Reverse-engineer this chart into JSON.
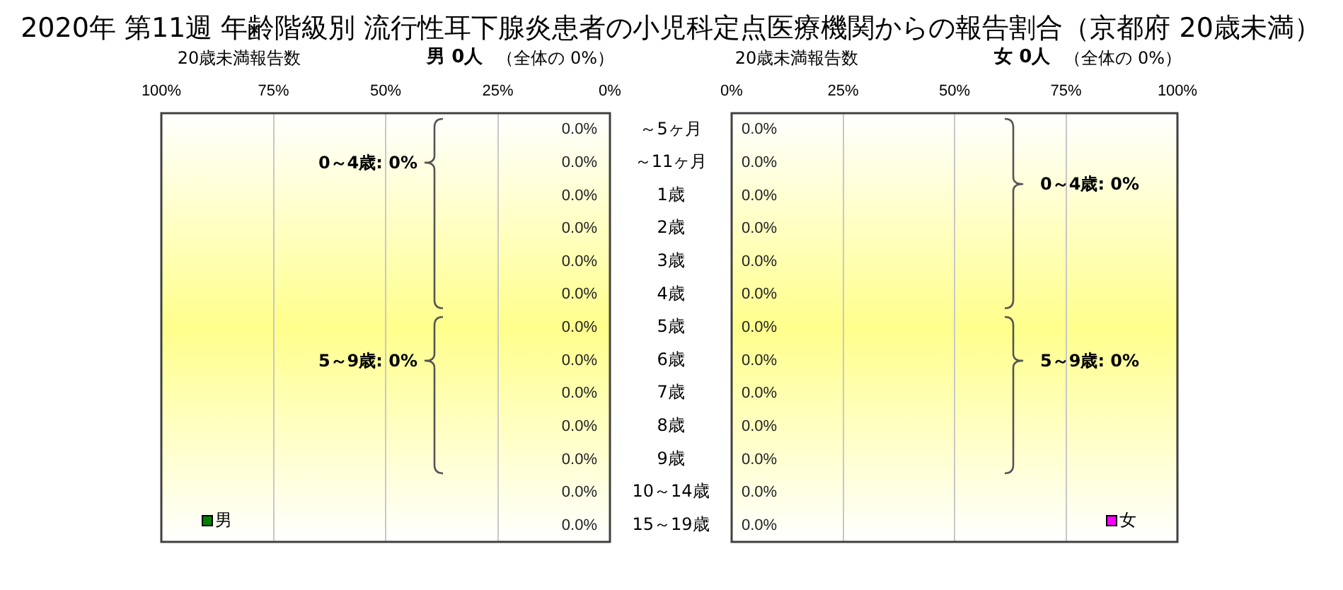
{
  "chart_data": [
    {
      "type": "bar",
      "orientation": "horizontal",
      "title": "2020年 第11週 年齢階級別 流行性耳下腺炎患者の小児科定点医療機関からの報告割合（京都府 20歳未満）",
      "subtitle": "20歳未満報告数",
      "annotations": [
        "男 0人",
        "（全体の 0%）",
        "0～4歳: 0%",
        "5～9歳: 0%"
      ],
      "categories": [
        "～5ヶ月",
        "～11ヶ月",
        "1歳",
        "2歳",
        "3歳",
        "4歳",
        "5歳",
        "6歳",
        "7歳",
        "8歳",
        "9歳",
        "10～14歳",
        "15～19歳"
      ],
      "series": [
        {
          "name": "男",
          "color": "#008000",
          "values": [
            0,
            0,
            0,
            0,
            0,
            0,
            0,
            0,
            0,
            0,
            0,
            0,
            0
          ],
          "value_labels": [
            "0.0%",
            "0.0%",
            "0.0%",
            "0.0%",
            "0.0%",
            "0.0%",
            "0.0%",
            "0.0%",
            "0.0%",
            "0.0%",
            "0.0%",
            "0.0%",
            "0.0%"
          ]
        }
      ],
      "xlim": [
        100,
        0
      ],
      "xticks": [
        {
          "value": 100,
          "label": "100%"
        },
        {
          "value": 75,
          "label": "75%"
        },
        {
          "value": 50,
          "label": "50%"
        },
        {
          "value": 25,
          "label": "25%"
        },
        {
          "value": 0,
          "label": "0%"
        }
      ],
      "grid": "x",
      "legend": "bottom left"
    },
    {
      "type": "bar",
      "orientation": "horizontal",
      "subtitle": "20歳未満報告数",
      "annotations": [
        "女 0人",
        "（全体の 0%）",
        "0～4歳: 0%",
        "5～9歳: 0%"
      ],
      "categories": [
        null,
        null,
        null,
        null,
        null,
        null,
        null,
        null,
        null,
        null,
        null,
        null,
        null
      ],
      "series": [
        {
          "name": "女",
          "color": "#ff00ff",
          "values": [
            0,
            0,
            0,
            0,
            0,
            0,
            0,
            0,
            0,
            0,
            0,
            0,
            0
          ],
          "value_labels": [
            "0.0%",
            "0.0%",
            "0.0%",
            "0.0%",
            "0.0%",
            "0.0%",
            "0.0%",
            "0.0%",
            "0.0%",
            "0.0%",
            "0.0%",
            "0.0%",
            "0.0%"
          ]
        }
      ],
      "xlim": [
        0,
        100
      ],
      "xticks": [
        {
          "value": 0,
          "label": "0%"
        },
        {
          "value": 25,
          "label": "25%"
        },
        {
          "value": 50,
          "label": "50%"
        },
        {
          "value": 75,
          "label": "75%"
        },
        {
          "value": 100,
          "label": "100%"
        }
      ],
      "grid": "x",
      "tick_labels": "x",
      "legend": "bottom right"
    }
  ]
}
